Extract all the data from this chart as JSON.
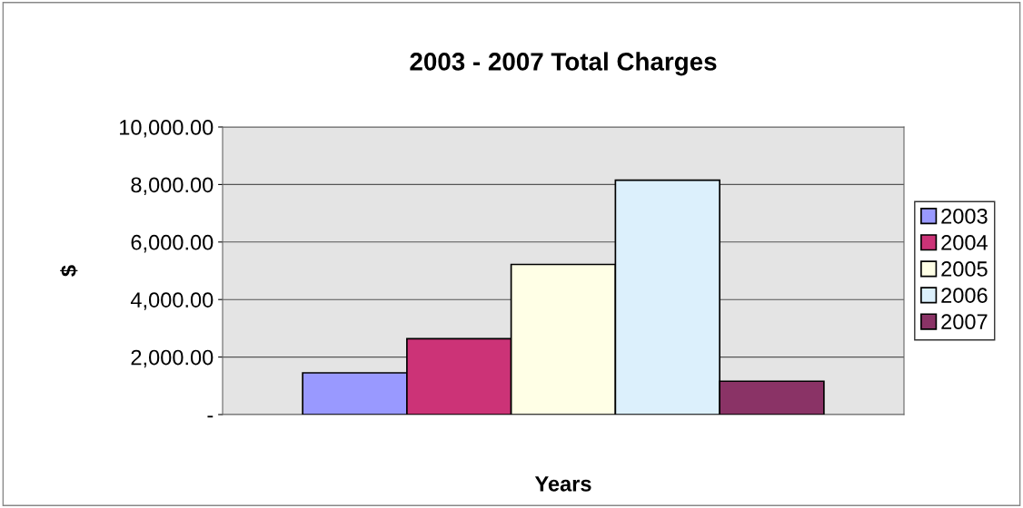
{
  "chart_data": {
    "type": "bar",
    "title": "2003 - 2007 Total Charges",
    "xlabel": "Years",
    "ylabel": "$",
    "categories": [
      null
    ],
    "series": [
      {
        "name": "2003",
        "color": "#9999ff",
        "values": [
          1450
        ]
      },
      {
        "name": "2004",
        "color": "#cc3377",
        "values": [
          2640
        ]
      },
      {
        "name": "2005",
        "color": "#ffffe6",
        "values": [
          5220
        ]
      },
      {
        "name": "2006",
        "color": "#dcf0fc",
        "values": [
          8150
        ]
      },
      {
        "name": "2007",
        "color": "#8a3366",
        "values": [
          1160
        ]
      }
    ],
    "ylim": [
      0,
      10000
    ],
    "yticks": [
      {
        "value": 0,
        "label": "-"
      },
      {
        "value": 2000,
        "label": "2,000.00"
      },
      {
        "value": 4000,
        "label": "4,000.00"
      },
      {
        "value": 6000,
        "label": "6,000.00"
      },
      {
        "value": 8000,
        "label": "8,000.00"
      },
      {
        "value": 10000,
        "label": "10,000.00"
      }
    ],
    "grid": "y",
    "legend": "right"
  }
}
